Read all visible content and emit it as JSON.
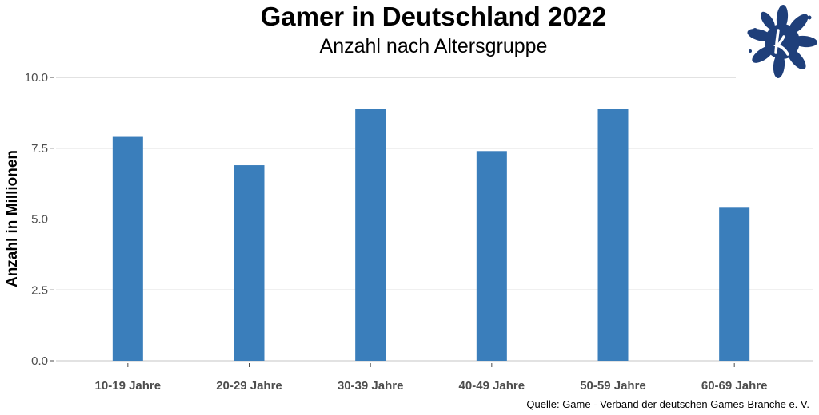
{
  "chart_data": {
    "type": "bar",
    "title": "Gamer in Deutschland 2022",
    "subtitle": "Anzahl nach Altersgruppe",
    "xlabel": "",
    "ylabel": "Anzahl in Millionen",
    "categories": [
      "10-19 Jahre",
      "20-29 Jahre",
      "30-39 Jahre",
      "40-49 Jahre",
      "50-59 Jahre",
      "60-69 Jahre"
    ],
    "values": [
      7.9,
      6.9,
      8.9,
      7.4,
      8.9,
      5.4
    ],
    "ylim": [
      0,
      10
    ],
    "yticks": [
      "0.0",
      "2.5",
      "5.0",
      "7.5",
      "10.0"
    ],
    "grid": true,
    "legend": "none",
    "bar_color": "#3A7EBB",
    "caption": "Quelle: Game - Verband der deutschen Games-Branche e. V."
  },
  "logo": {
    "icon": "flower-k-logo",
    "color": "#1F3F7A"
  }
}
